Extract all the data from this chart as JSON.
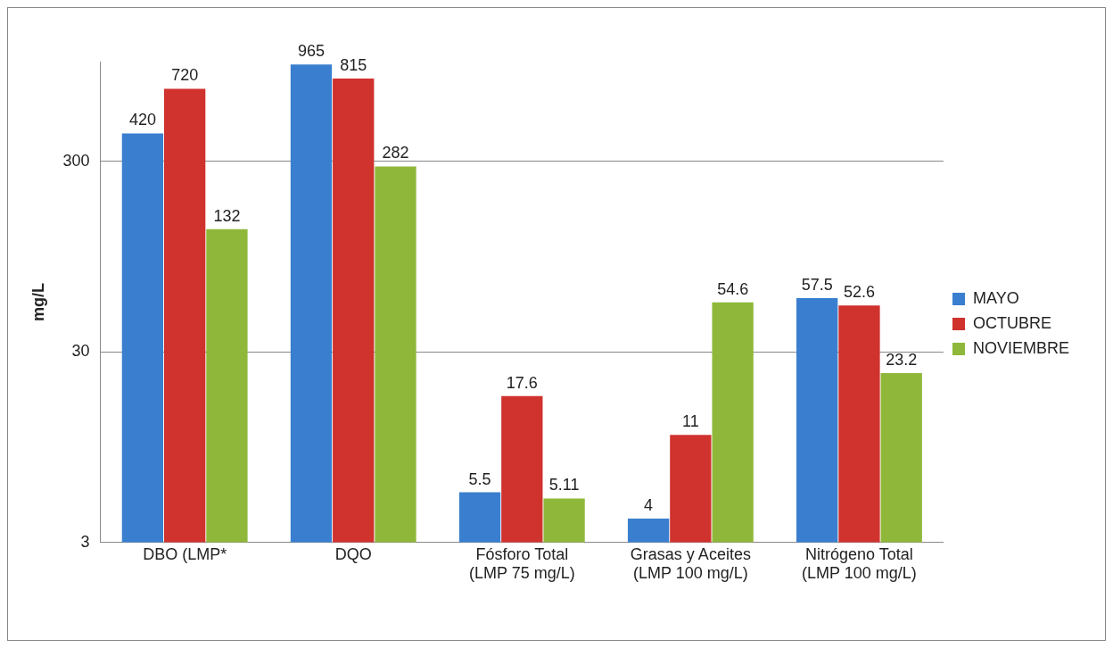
{
  "chart_data": {
    "type": "bar",
    "ylabel": "mg/L",
    "categories": [
      "DBO (LMP*",
      "DQO",
      "Fósforo Total\n(LMP 75 mg/L)",
      "Grasas y Aceites\n(LMP 100 mg/L)",
      "Nitrógeno Total\n(LMP 100 mg/L)"
    ],
    "series": [
      {
        "name": "MAYO",
        "color": "#3a7fcf",
        "values": [
          420,
          965,
          5.5,
          4,
          57.5
        ]
      },
      {
        "name": "OCTUBRE",
        "color": "#d0322e",
        "values": [
          720,
          815,
          17.6,
          11,
          52.6
        ]
      },
      {
        "name": "NOVIEMBRE",
        "color": "#8fb83a",
        "values": [
          132,
          282,
          5.11,
          54.6,
          23.2
        ]
      }
    ],
    "log": "y",
    "ylim": [
      3,
      1000
    ],
    "yticks": [
      3,
      30,
      300
    ],
    "grid": "y",
    "legend": "right",
    "data_labels": true
  }
}
